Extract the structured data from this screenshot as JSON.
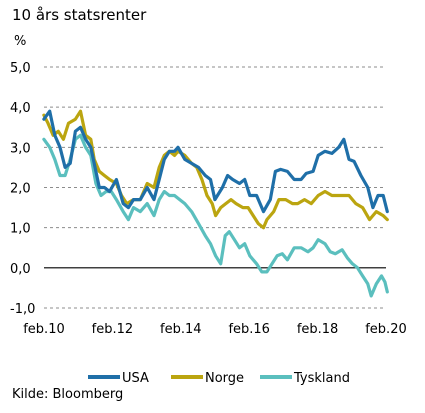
{
  "title": "10 års statsrenter",
  "unit": "%",
  "source": "Kilde: Bloomberg",
  "chart_data": {
    "type": "line",
    "title": "10 års statsrenter",
    "ylabel": "%",
    "ylim": [
      -1.0,
      5.0
    ],
    "yticks": [
      -1.0,
      0.0,
      1.0,
      2.0,
      3.0,
      4.0,
      5.0
    ],
    "ytick_labels": [
      "-1,0",
      "0,0",
      "1,0",
      "2,0",
      "3,0",
      "4,0",
      "5,0"
    ],
    "xlim": [
      2010.083,
      2020.083
    ],
    "xticks": [
      2010.083,
      2012.083,
      2014.083,
      2016.083,
      2018.083,
      2020.083
    ],
    "xtick_labels": [
      "feb.10",
      "feb.12",
      "feb.14",
      "feb.16",
      "feb.18",
      "feb.20"
    ],
    "grid": "horizontal dashed",
    "legend_position": "bottom",
    "series": [
      {
        "name": "USA",
        "color": "#1f6fa8",
        "points": [
          [
            2010.08,
            3.7
          ],
          [
            2010.25,
            3.9
          ],
          [
            2010.4,
            3.3
          ],
          [
            2010.55,
            3.0
          ],
          [
            2010.7,
            2.5
          ],
          [
            2010.85,
            2.6
          ],
          [
            2011.0,
            3.4
          ],
          [
            2011.15,
            3.5
          ],
          [
            2011.3,
            3.2
          ],
          [
            2011.45,
            3.0
          ],
          [
            2011.6,
            2.4
          ],
          [
            2011.7,
            2.0
          ],
          [
            2011.85,
            2.0
          ],
          [
            2012.0,
            1.9
          ],
          [
            2012.2,
            2.2
          ],
          [
            2012.4,
            1.6
          ],
          [
            2012.55,
            1.5
          ],
          [
            2012.7,
            1.7
          ],
          [
            2012.9,
            1.7
          ],
          [
            2013.1,
            2.0
          ],
          [
            2013.3,
            1.7
          ],
          [
            2013.45,
            2.2
          ],
          [
            2013.6,
            2.7
          ],
          [
            2013.75,
            2.9
          ],
          [
            2013.9,
            2.9
          ],
          [
            2014.0,
            3.0
          ],
          [
            2014.2,
            2.7
          ],
          [
            2014.4,
            2.6
          ],
          [
            2014.6,
            2.5
          ],
          [
            2014.8,
            2.3
          ],
          [
            2014.95,
            2.2
          ],
          [
            2015.08,
            1.7
          ],
          [
            2015.3,
            2.0
          ],
          [
            2015.45,
            2.3
          ],
          [
            2015.6,
            2.2
          ],
          [
            2015.8,
            2.1
          ],
          [
            2015.95,
            2.2
          ],
          [
            2016.1,
            1.8
          ],
          [
            2016.3,
            1.8
          ],
          [
            2016.5,
            1.4
          ],
          [
            2016.7,
            1.7
          ],
          [
            2016.85,
            2.4
          ],
          [
            2017.0,
            2.45
          ],
          [
            2017.2,
            2.4
          ],
          [
            2017.4,
            2.2
          ],
          [
            2017.6,
            2.2
          ],
          [
            2017.75,
            2.35
          ],
          [
            2017.95,
            2.4
          ],
          [
            2018.1,
            2.8
          ],
          [
            2018.3,
            2.9
          ],
          [
            2018.5,
            2.85
          ],
          [
            2018.7,
            3.0
          ],
          [
            2018.85,
            3.2
          ],
          [
            2019.0,
            2.7
          ],
          [
            2019.15,
            2.65
          ],
          [
            2019.35,
            2.3
          ],
          [
            2019.55,
            2.0
          ],
          [
            2019.7,
            1.5
          ],
          [
            2019.85,
            1.8
          ],
          [
            2020.0,
            1.8
          ],
          [
            2020.12,
            1.4
          ]
        ]
      },
      {
        "name": "Norge",
        "color": "#bba510",
        "points": [
          [
            2010.08,
            3.8
          ],
          [
            2010.2,
            3.6
          ],
          [
            2010.35,
            3.3
          ],
          [
            2010.5,
            3.4
          ],
          [
            2010.65,
            3.2
          ],
          [
            2010.8,
            3.6
          ],
          [
            2011.0,
            3.7
          ],
          [
            2011.15,
            3.9
          ],
          [
            2011.3,
            3.3
          ],
          [
            2011.45,
            3.2
          ],
          [
            2011.55,
            2.7
          ],
          [
            2011.7,
            2.4
          ],
          [
            2011.85,
            2.3
          ],
          [
            2012.0,
            2.2
          ],
          [
            2012.2,
            2.1
          ],
          [
            2012.35,
            1.8
          ],
          [
            2012.5,
            1.6
          ],
          [
            2012.7,
            1.7
          ],
          [
            2012.9,
            1.7
          ],
          [
            2013.1,
            2.1
          ],
          [
            2013.3,
            2.0
          ],
          [
            2013.45,
            2.5
          ],
          [
            2013.6,
            2.8
          ],
          [
            2013.75,
            2.9
          ],
          [
            2013.9,
            2.8
          ],
          [
            2014.0,
            2.9
          ],
          [
            2014.2,
            2.8
          ],
          [
            2014.4,
            2.6
          ],
          [
            2014.55,
            2.5
          ],
          [
            2014.7,
            2.2
          ],
          [
            2014.85,
            1.8
          ],
          [
            2015.0,
            1.6
          ],
          [
            2015.1,
            1.3
          ],
          [
            2015.25,
            1.5
          ],
          [
            2015.4,
            1.6
          ],
          [
            2015.55,
            1.7
          ],
          [
            2015.7,
            1.6
          ],
          [
            2015.9,
            1.5
          ],
          [
            2016.05,
            1.5
          ],
          [
            2016.2,
            1.3
          ],
          [
            2016.35,
            1.1
          ],
          [
            2016.5,
            1.0
          ],
          [
            2016.6,
            1.2
          ],
          [
            2016.8,
            1.4
          ],
          [
            2016.95,
            1.7
          ],
          [
            2017.15,
            1.7
          ],
          [
            2017.35,
            1.6
          ],
          [
            2017.5,
            1.6
          ],
          [
            2017.7,
            1.7
          ],
          [
            2017.9,
            1.6
          ],
          [
            2018.1,
            1.8
          ],
          [
            2018.3,
            1.9
          ],
          [
            2018.5,
            1.8
          ],
          [
            2018.7,
            1.8
          ],
          [
            2018.85,
            1.8
          ],
          [
            2019.0,
            1.8
          ],
          [
            2019.2,
            1.6
          ],
          [
            2019.4,
            1.5
          ],
          [
            2019.6,
            1.2
          ],
          [
            2019.8,
            1.4
          ],
          [
            2020.0,
            1.3
          ],
          [
            2020.12,
            1.2
          ]
        ]
      },
      {
        "name": "Tyskland",
        "color": "#5bbfbe",
        "points": [
          [
            2010.08,
            3.2
          ],
          [
            2010.25,
            3.0
          ],
          [
            2010.4,
            2.7
          ],
          [
            2010.55,
            2.3
          ],
          [
            2010.7,
            2.3
          ],
          [
            2010.85,
            2.7
          ],
          [
            2011.0,
            3.2
          ],
          [
            2011.15,
            3.3
          ],
          [
            2011.3,
            3.0
          ],
          [
            2011.45,
            2.8
          ],
          [
            2011.6,
            2.1
          ],
          [
            2011.75,
            1.8
          ],
          [
            2011.9,
            1.9
          ],
          [
            2012.05,
            1.9
          ],
          [
            2012.2,
            1.7
          ],
          [
            2012.4,
            1.4
          ],
          [
            2012.55,
            1.2
          ],
          [
            2012.7,
            1.5
          ],
          [
            2012.9,
            1.4
          ],
          [
            2013.1,
            1.6
          ],
          [
            2013.3,
            1.3
          ],
          [
            2013.45,
            1.7
          ],
          [
            2013.6,
            1.9
          ],
          [
            2013.75,
            1.8
          ],
          [
            2013.9,
            1.8
          ],
          [
            2014.05,
            1.7
          ],
          [
            2014.2,
            1.6
          ],
          [
            2014.4,
            1.4
          ],
          [
            2014.6,
            1.1
          ],
          [
            2014.8,
            0.8
          ],
          [
            2014.95,
            0.6
          ],
          [
            2015.1,
            0.3
          ],
          [
            2015.25,
            0.1
          ],
          [
            2015.38,
            0.8
          ],
          [
            2015.5,
            0.9
          ],
          [
            2015.65,
            0.7
          ],
          [
            2015.8,
            0.5
          ],
          [
            2015.95,
            0.6
          ],
          [
            2016.1,
            0.3
          ],
          [
            2016.3,
            0.1
          ],
          [
            2016.45,
            -0.1
          ],
          [
            2016.6,
            -0.1
          ],
          [
            2016.75,
            0.1
          ],
          [
            2016.9,
            0.3
          ],
          [
            2017.05,
            0.35
          ],
          [
            2017.2,
            0.2
          ],
          [
            2017.4,
            0.5
          ],
          [
            2017.6,
            0.5
          ],
          [
            2017.8,
            0.4
          ],
          [
            2017.95,
            0.5
          ],
          [
            2018.1,
            0.7
          ],
          [
            2018.3,
            0.6
          ],
          [
            2018.45,
            0.4
          ],
          [
            2018.6,
            0.35
          ],
          [
            2018.8,
            0.45
          ],
          [
            2018.95,
            0.25
          ],
          [
            2019.1,
            0.1
          ],
          [
            2019.25,
            0.0
          ],
          [
            2019.4,
            -0.2
          ],
          [
            2019.55,
            -0.4
          ],
          [
            2019.65,
            -0.7
          ],
          [
            2019.8,
            -0.4
          ],
          [
            2019.95,
            -0.2
          ],
          [
            2020.05,
            -0.35
          ],
          [
            2020.12,
            -0.6
          ]
        ]
      }
    ]
  }
}
